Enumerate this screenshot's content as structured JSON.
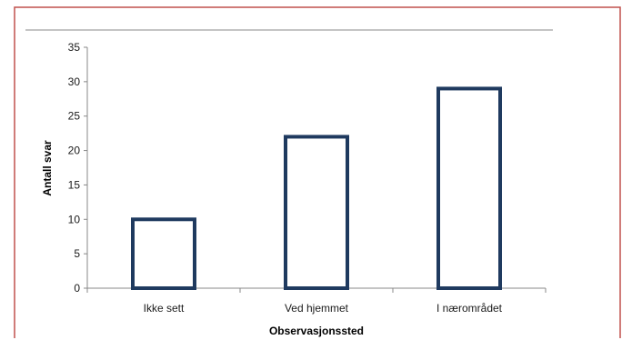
{
  "colors": {
    "frame_border": "#c0504d",
    "bar_outline": "#1f3a5f",
    "bar_fill": "#ffffff",
    "axis": "#888888",
    "top_rule": "#888888"
  },
  "chart_data": {
    "type": "bar",
    "categories": [
      "Ikke sett",
      "Ved hjemmet",
      "I nærområdet"
    ],
    "values": [
      10,
      22,
      29
    ],
    "title": "",
    "xlabel": "Observasjonssted",
    "ylabel": "Antall svar",
    "ylim": [
      0,
      35
    ],
    "yticks": [
      "0",
      "5",
      "10",
      "15",
      "20",
      "25",
      "30",
      "35"
    ],
    "grid": false,
    "legend": "none"
  }
}
